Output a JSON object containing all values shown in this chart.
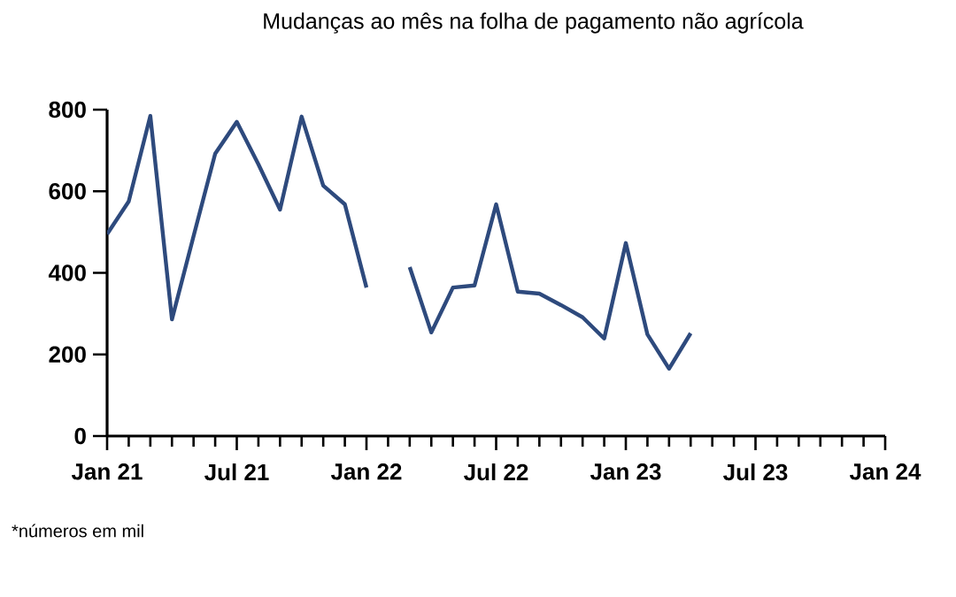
{
  "chart_data": {
    "type": "line",
    "title": "Mudanças ao mês na folha de pagamento não agrícola",
    "annotations": [
      "*números em mil"
    ],
    "x": [
      "2021-01",
      "2021-02",
      "2021-03",
      "2021-04",
      "2021-05",
      "2021-06",
      "2021-07",
      "2021-08",
      "2021-09",
      "2021-10",
      "2021-11",
      "2021-12",
      "2022-01",
      "2022-02",
      "2022-03",
      "2022-04",
      "2022-05",
      "2022-06",
      "2022-07",
      "2022-08",
      "2022-09",
      "2022-10",
      "2022-11",
      "2022-12",
      "2023-01",
      "2023-02",
      "2023-03",
      "2023-04"
    ],
    "series": [
      {
        "color": "#2e4a7d",
        "values": [
          495,
          575,
          785,
          286,
          490,
          692,
          770,
          666,
          555,
          783,
          614,
          568,
          364,
          null,
          414,
          254,
          364,
          369,
          568,
          354,
          349,
          321,
          291,
          239,
          473,
          249,
          165,
          252
        ]
      }
    ],
    "xlim": [
      "2021-01",
      "2024-01"
    ],
    "xticks": [
      {
        "value": "2021-01",
        "label": "Jan 21"
      },
      {
        "value": "2021-07",
        "label": "Jul 21"
      },
      {
        "value": "2022-01",
        "label": "Jan 22"
      },
      {
        "value": "2022-07",
        "label": "Jul 22"
      },
      {
        "value": "2023-01",
        "label": "Jan 23"
      },
      {
        "value": "2023-07",
        "label": "Jul 23"
      },
      {
        "value": "2024-01",
        "label": "Jan 24"
      }
    ],
    "ylim": [
      0,
      800
    ],
    "yticks": [
      0,
      200,
      400,
      600,
      800
    ],
    "grid": false,
    "marker": "none",
    "line_style": "solid"
  }
}
